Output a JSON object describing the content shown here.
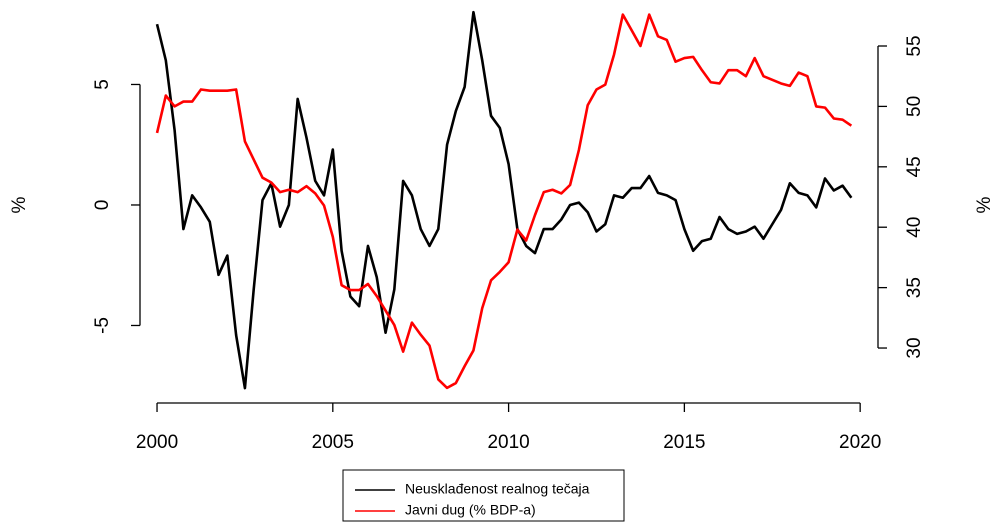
{
  "chart_data": {
    "type": "line",
    "ylabel": "%",
    "y2label": "%",
    "x": [
      2000,
      2000.25,
      2000.5,
      2000.75,
      2001,
      2001.25,
      2001.5,
      2001.75,
      2002,
      2002.25,
      2002.5,
      2002.75,
      2003,
      2003.25,
      2003.5,
      2003.75,
      2004,
      2004.25,
      2004.5,
      2004.75,
      2005,
      2005.25,
      2005.5,
      2005.75,
      2006,
      2006.25,
      2006.5,
      2006.75,
      2007,
      2007.25,
      2007.5,
      2007.75,
      2008,
      2008.25,
      2008.5,
      2008.75,
      2009,
      2009.25,
      2009.5,
      2009.75,
      2010,
      2010.25,
      2010.5,
      2010.75,
      2011,
      2011.25,
      2011.5,
      2011.75,
      2012,
      2012.25,
      2012.5,
      2012.75,
      2013,
      2013.25,
      2013.5,
      2013.75,
      2014,
      2014.25,
      2014.5,
      2014.75,
      2015,
      2015.25,
      2015.5,
      2015.75,
      2016,
      2016.25,
      2016.5,
      2016.75,
      2017,
      2017.25,
      2017.5,
      2017.75,
      2018,
      2018.25,
      2018.5,
      2018.75,
      2019,
      2019.25,
      2019.5,
      2019.75
    ],
    "series": [
      {
        "name": "Neusklađenost realnog tečaja",
        "color": "#000000",
        "axis": "y",
        "values": [
          7.5,
          6.0,
          3.1,
          -1.0,
          0.4,
          -0.1,
          -0.7,
          -2.9,
          -2.1,
          -5.4,
          -7.6,
          -3.5,
          0.2,
          0.9,
          -0.9,
          0.0,
          4.4,
          2.8,
          1.0,
          0.4,
          2.3,
          -1.9,
          -3.8,
          -4.2,
          -1.7,
          -3.0,
          -5.3,
          -3.5,
          1.0,
          0.4,
          -1.0,
          -1.7,
          -1.0,
          2.5,
          3.9,
          4.9,
          8.0,
          6.0,
          3.7,
          3.2,
          1.7,
          -1.0,
          -1.7,
          -2.0,
          -1.0,
          -1.0,
          -0.6,
          0.0,
          0.1,
          -0.3,
          -1.1,
          -0.8,
          0.4,
          0.3,
          0.7,
          0.7,
          1.2,
          0.5,
          0.4,
          0.2,
          -1.0,
          -1.9,
          -1.5,
          -1.4,
          -0.5,
          -1.0,
          -1.2,
          -1.1,
          -0.9,
          -1.4,
          -0.8,
          -0.2,
          0.9,
          0.5,
          0.4,
          -0.1,
          1.1,
          0.6,
          0.8,
          0.3
        ]
      },
      {
        "name": "Javni dug (% BDP-a)",
        "color": "#ff0000",
        "axis": "y2",
        "values": [
          47.8,
          50.9,
          50.0,
          50.4,
          50.4,
          51.4,
          51.3,
          51.3,
          51.3,
          51.4,
          47.1,
          45.6,
          44.1,
          43.7,
          42.9,
          43.1,
          42.9,
          43.4,
          42.8,
          41.8,
          39.2,
          35.2,
          34.8,
          34.8,
          35.3,
          34.3,
          33.1,
          31.9,
          29.7,
          32.1,
          31.1,
          30.2,
          27.4,
          26.7,
          27.1,
          28.5,
          29.8,
          33.3,
          35.6,
          36.3,
          37.1,
          39.8,
          38.9,
          41.0,
          42.9,
          43.1,
          42.8,
          43.5,
          46.4,
          50.1,
          51.4,
          51.8,
          54.3,
          57.6,
          56.3,
          55.0,
          57.6,
          55.8,
          55.5,
          53.7,
          54.0,
          54.1,
          53.0,
          52.0,
          51.9,
          53.0,
          53.0,
          52.5,
          54.0,
          52.5,
          52.2,
          51.9,
          51.7,
          52.8,
          52.5,
          50.0,
          49.9,
          49.0,
          48.9,
          48.4
        ]
      }
    ],
    "xlim": [
      1999.8,
      2020.28
    ],
    "xticks": [
      2000,
      2005,
      2010,
      2015,
      2020
    ],
    "ylim": [
      -7.76,
      8.09
    ],
    "yticks": [
      -5,
      0,
      5
    ],
    "y2lim": [
      26.36,
      57.98
    ],
    "y2ticks": [
      30,
      35,
      40,
      45,
      50,
      55
    ],
    "legend": "bottom"
  }
}
